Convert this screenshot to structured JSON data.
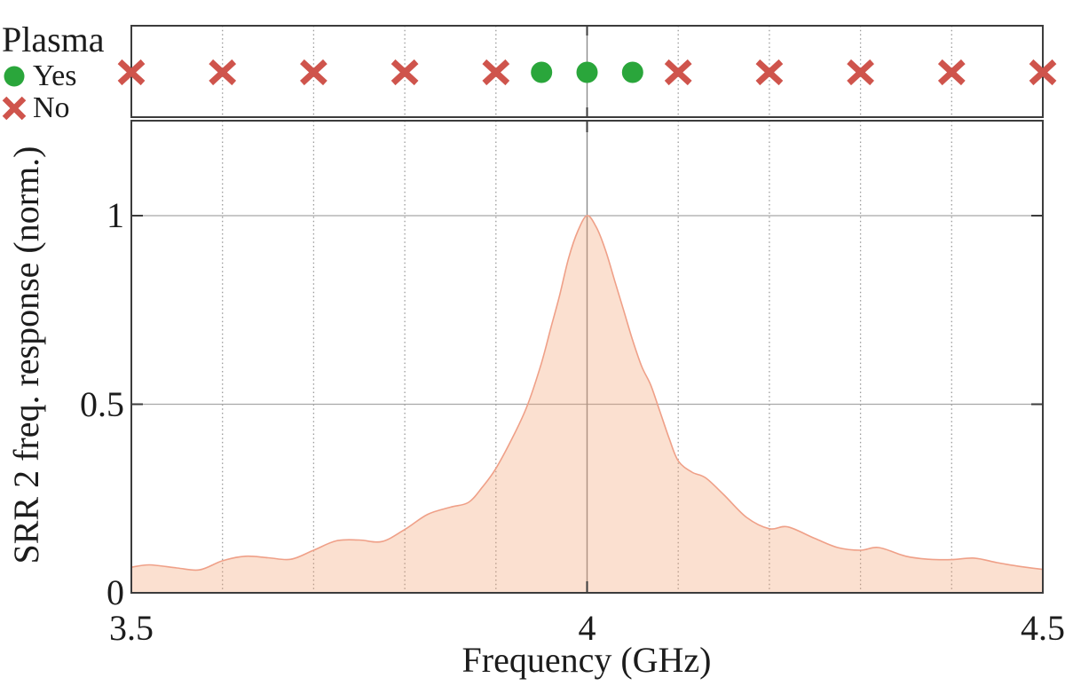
{
  "page": {
    "background": "#ffffff"
  },
  "legend": {
    "title": "Plasma",
    "items": [
      {
        "label": "Yes",
        "marker": "circle",
        "color": "#2aa63b"
      },
      {
        "label": "No",
        "marker": "x",
        "color": "#cf544c"
      }
    ]
  },
  "chart_data": {
    "type": "area",
    "title": "",
    "xlabel": "Frequency (GHz)",
    "ylabel": "SRR 2 freq. response (norm.)",
    "xlim": [
      3.5,
      4.5
    ],
    "ylim": [
      0,
      1.25
    ],
    "grid": "vertical-dotted, solid line at 4.0, horizontal solid at 0.5 and 1",
    "legend_position": "outside-top-left",
    "x_ticks": [
      {
        "value": 3.5,
        "label": "3.5"
      },
      {
        "value": 4,
        "label": "4"
      },
      {
        "value": 4.5,
        "label": "4.5"
      }
    ],
    "y_ticks": [
      {
        "value": 0,
        "label": "0"
      },
      {
        "value": 0.5,
        "label": "0.5"
      },
      {
        "value": 1,
        "label": "1"
      }
    ],
    "x_gridlines_dotted": [
      3.6,
      3.7,
      3.8,
      3.9,
      4.1,
      4.2,
      4.3,
      4.4
    ],
    "x_gridline_solid": 4,
    "y_gridlines": [
      0.5,
      1
    ],
    "area_series": {
      "name": "SRR 2 freq. response (norm.)",
      "x": [
        3.5,
        3.52,
        3.55,
        3.575,
        3.6,
        3.625,
        3.65,
        3.675,
        3.7,
        3.725,
        3.75,
        3.775,
        3.8,
        3.825,
        3.85,
        3.87,
        3.885,
        3.9,
        3.92,
        3.935,
        3.95,
        3.96,
        3.97,
        3.98,
        3.99,
        4.0,
        4.01,
        4.02,
        4.03,
        4.04,
        4.05,
        4.06,
        4.07,
        4.08,
        4.09,
        4.1,
        4.115,
        4.13,
        4.15,
        4.175,
        4.2,
        4.22,
        4.25,
        4.275,
        4.3,
        4.32,
        4.35,
        4.375,
        4.4,
        4.425,
        4.45,
        4.475,
        4.5
      ],
      "y": [
        0.068,
        0.074,
        0.066,
        0.061,
        0.085,
        0.097,
        0.093,
        0.089,
        0.113,
        0.138,
        0.14,
        0.136,
        0.168,
        0.208,
        0.227,
        0.24,
        0.28,
        0.33,
        0.42,
        0.5,
        0.61,
        0.7,
        0.79,
        0.89,
        0.96,
        1.0,
        0.97,
        0.91,
        0.83,
        0.75,
        0.67,
        0.6,
        0.55,
        0.48,
        0.41,
        0.35,
        0.32,
        0.305,
        0.26,
        0.2,
        0.17,
        0.175,
        0.144,
        0.12,
        0.113,
        0.12,
        0.097,
        0.089,
        0.088,
        0.092,
        0.08,
        0.07,
        0.062
      ],
      "peak": {
        "x": 4.0,
        "y": 1.0
      },
      "fill_color": "#f39e6d",
      "fill_opacity": 0.32,
      "line_color": "#efa088"
    },
    "marker_rows": {
      "panel": "top-strip",
      "series": [
        {
          "name": "Plasma Yes",
          "marker": "circle",
          "color": "#2aa63b",
          "x": [
            3.95,
            4.0,
            4.05
          ]
        },
        {
          "name": "Plasma No",
          "marker": "x",
          "color": "#cf544c",
          "x": [
            3.5,
            3.6,
            3.7,
            3.8,
            3.9,
            4.1,
            4.2,
            4.3,
            4.4,
            4.5
          ]
        }
      ]
    },
    "colors": {
      "frame": "#3c3c3c",
      "grid_dotted": "#9a9a9a",
      "grid_solid": "#a8a8a8",
      "center_line": "#8c8c8c",
      "text": "#1c1c1c"
    }
  }
}
